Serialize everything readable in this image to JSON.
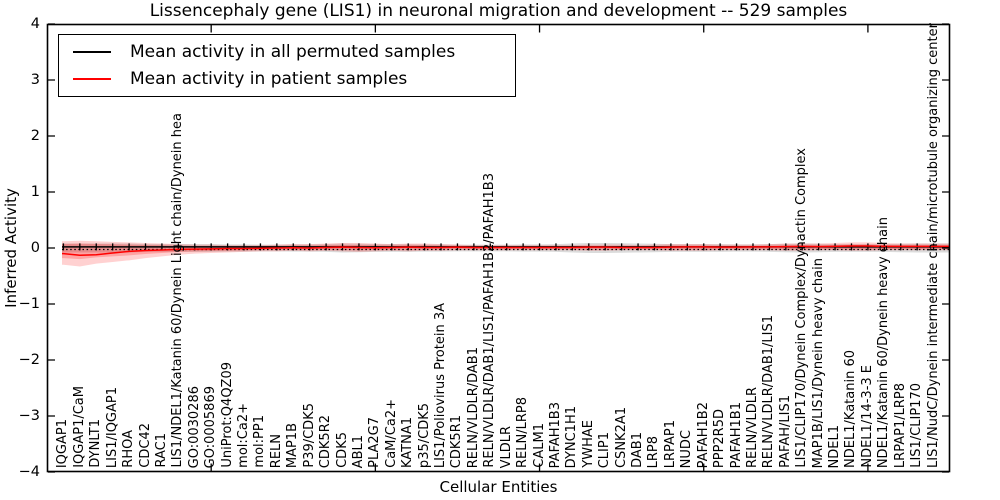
{
  "figure": {
    "title": "Lissencephaly gene (LIS1) in neuronal migration and development -- 529 samples",
    "xlabel": "Cellular Entities",
    "ylabel": "Inferred Activity"
  },
  "legend": {
    "entries": [
      {
        "label": "Mean activity in all permuted samples",
        "color": "#000000"
      },
      {
        "label": "Mean activity in patient samples",
        "color": "#ff0000"
      }
    ]
  },
  "chart_data": {
    "type": "line",
    "title": "Lissencephaly gene (LIS1) in neuronal migration and development -- 529 samples",
    "xlabel": "Cellular Entities",
    "ylabel": "Inferred Activity",
    "ylim": [
      -4,
      4
    ],
    "yticks": [
      4,
      3,
      2,
      1,
      0,
      -1,
      -2,
      -3,
      -4
    ],
    "ytick_labels": [
      "4",
      "3",
      "2",
      "1",
      "0",
      "−1",
      "−2",
      "−3",
      "−4"
    ],
    "xticks": [
      10,
      20,
      30,
      40,
      50
    ],
    "x_range": [
      0,
      55
    ],
    "grid": false,
    "legend_position": "upper left",
    "categories": [
      "IQGAP1",
      "IQGAP1/CaM",
      "DYNLT1",
      "LIS1/IQGAP1",
      "RHOA",
      "CDC42",
      "RAC1",
      "LIS1/NDEL1/Katanin 60/Dynein Light chain/Dynein hea",
      "GO:0030286",
      "GO:0005869",
      "UniProt:Q4QZ09",
      "mol:Ca2+",
      "mol:PP1",
      "RELN",
      "MAP1B",
      "P39/CDK5",
      "CDK5R2",
      "CDK5",
      "ABL1",
      "PLA2G7",
      "CaM/Ca2+",
      "KATNA1",
      "p35/CDK5",
      "LIS1/Poliovirus Protein 3A",
      "CDK5R1",
      "RELN/VLDLR/DAB1",
      "RELN/VLDLR/DAB1/LIS1/PAFAH1B2/PAFAH1B3",
      "VLDLR",
      "RELN/LRP8",
      "CALM1",
      "PAFAH1B3",
      "DYNC1H1",
      "YWHAE",
      "CLIP1",
      "CSNK2A1",
      "DAB1",
      "LRP8",
      "LRPAP1",
      "NUDC",
      "PAFAH1B2",
      "PPP2R5D",
      "PAFAH1B1",
      "RELN/VLDLR",
      "RELN/VLDLR/DAB1/LIS1",
      "PAFAH/LIS1",
      "LIS1/CLIP170/Dynein Complex/Dynactin Complex",
      "MAP1B/LIS1/Dynein heavy chain",
      "NDEL1",
      "NDEL1/Katanin 60",
      "NDEL1/14-3-3 E",
      "NDEL1/Katanin 60/Dynein heavy chain",
      "LRPAP1/LRP8",
      "LIS1/CLIP170",
      "LIS1/NudC/Dynein intermediate chain/microtubule organizing center"
    ],
    "series": [
      {
        "name": "Mean activity in all permuted samples",
        "color": "#000000",
        "style": "solid",
        "marker": "|",
        "constant": 0.02
      },
      {
        "name": "Mean activity in patient samples",
        "color": "#ff0000",
        "style": "solid",
        "values": [
          -0.1,
          -0.13,
          -0.12,
          -0.09,
          -0.06,
          -0.045,
          -0.035,
          -0.025,
          -0.02,
          -0.015,
          -0.01,
          -0.01,
          -0.005,
          0.0,
          0.005,
          0.0,
          0.01,
          0.015,
          0.01,
          0.005,
          0.01,
          0.015,
          0.01,
          0.01,
          0.015,
          0.01,
          0.01,
          0.01,
          0.01,
          0.01,
          0.01,
          0.01,
          0.015,
          0.015,
          0.01,
          0.01,
          0.01,
          0.015,
          0.02,
          0.02,
          0.015,
          0.015,
          0.02,
          0.02,
          0.025,
          0.03,
          0.025,
          0.03,
          0.035,
          0.035,
          0.03,
          0.03,
          0.03,
          0.03
        ]
      }
    ],
    "bands": [
      {
        "name": "permuted-sample-range",
        "color": "#999999",
        "opacity": 0.35,
        "top": [
          0.08,
          0.08,
          0.08,
          0.08,
          0.08,
          0.07,
          0.07,
          0.07,
          0.07,
          0.07,
          0.065,
          0.065,
          0.06,
          0.06,
          0.065,
          0.065,
          0.07,
          0.08,
          0.075,
          0.07,
          0.07,
          0.07,
          0.065,
          0.065,
          0.06,
          0.06,
          0.06,
          0.06,
          0.065,
          0.065,
          0.07,
          0.08,
          0.09,
          0.09,
          0.085,
          0.08,
          0.075,
          0.07,
          0.07,
          0.07,
          0.07,
          0.065,
          0.065,
          0.07,
          0.075,
          0.08,
          0.075,
          0.07,
          0.07,
          0.07,
          0.07,
          0.075,
          0.08,
          0.08
        ],
        "bottom": [
          -0.08,
          -0.08,
          -0.08,
          -0.08,
          -0.08,
          -0.07,
          -0.07,
          -0.07,
          -0.07,
          -0.07,
          -0.065,
          -0.065,
          -0.06,
          -0.06,
          -0.065,
          -0.065,
          -0.07,
          -0.08,
          -0.075,
          -0.07,
          -0.07,
          -0.07,
          -0.065,
          -0.065,
          -0.06,
          -0.06,
          -0.06,
          -0.06,
          -0.065,
          -0.065,
          -0.07,
          -0.08,
          -0.09,
          -0.09,
          -0.085,
          -0.08,
          -0.075,
          -0.07,
          -0.07,
          -0.07,
          -0.07,
          -0.065,
          -0.065,
          -0.07,
          -0.075,
          -0.08,
          -0.075,
          -0.07,
          -0.07,
          -0.07,
          -0.07,
          -0.075,
          -0.08,
          -0.08
        ]
      },
      {
        "name": "patient-sample-range",
        "color": "#ff0000",
        "opacity": 0.18,
        "inner_scale": 0.6,
        "inner_opacity": 0.22,
        "top": [
          0.12,
          0.13,
          0.12,
          0.11,
          0.1,
          0.09,
          0.08,
          0.07,
          0.06,
          0.06,
          0.05,
          0.05,
          0.05,
          0.06,
          0.07,
          0.07,
          0.08,
          0.09,
          0.09,
          0.08,
          0.07,
          0.08,
          0.08,
          0.07,
          0.06,
          0.05,
          0.05,
          0.05,
          0.05,
          0.05,
          0.05,
          0.05,
          0.06,
          0.06,
          0.06,
          0.05,
          0.06,
          0.07,
          0.07,
          0.07,
          0.06,
          0.06,
          0.06,
          0.07,
          0.08,
          0.08,
          0.08,
          0.09,
          0.1,
          0.1,
          0.09,
          0.08,
          0.08,
          0.08
        ],
        "bottom": [
          -0.3,
          -0.33,
          -0.28,
          -0.25,
          -0.22,
          -0.18,
          -0.15,
          -0.12,
          -0.1,
          -0.09,
          -0.08,
          -0.07,
          -0.06,
          -0.06,
          -0.05,
          -0.06,
          -0.05,
          -0.06,
          -0.07,
          -0.06,
          -0.05,
          -0.06,
          -0.05,
          -0.05,
          -0.04,
          -0.04,
          -0.04,
          -0.04,
          -0.04,
          -0.04,
          -0.04,
          -0.04,
          -0.05,
          -0.05,
          -0.04,
          -0.04,
          -0.04,
          -0.05,
          -0.05,
          -0.05,
          -0.04,
          -0.04,
          -0.04,
          -0.04,
          -0.05,
          -0.05,
          -0.04,
          -0.04,
          -0.05,
          -0.05,
          -0.04,
          -0.04,
          -0.04,
          -0.04
        ]
      }
    ],
    "zero_line": {
      "y": 0,
      "color": "#000000",
      "style": "dotted"
    }
  }
}
